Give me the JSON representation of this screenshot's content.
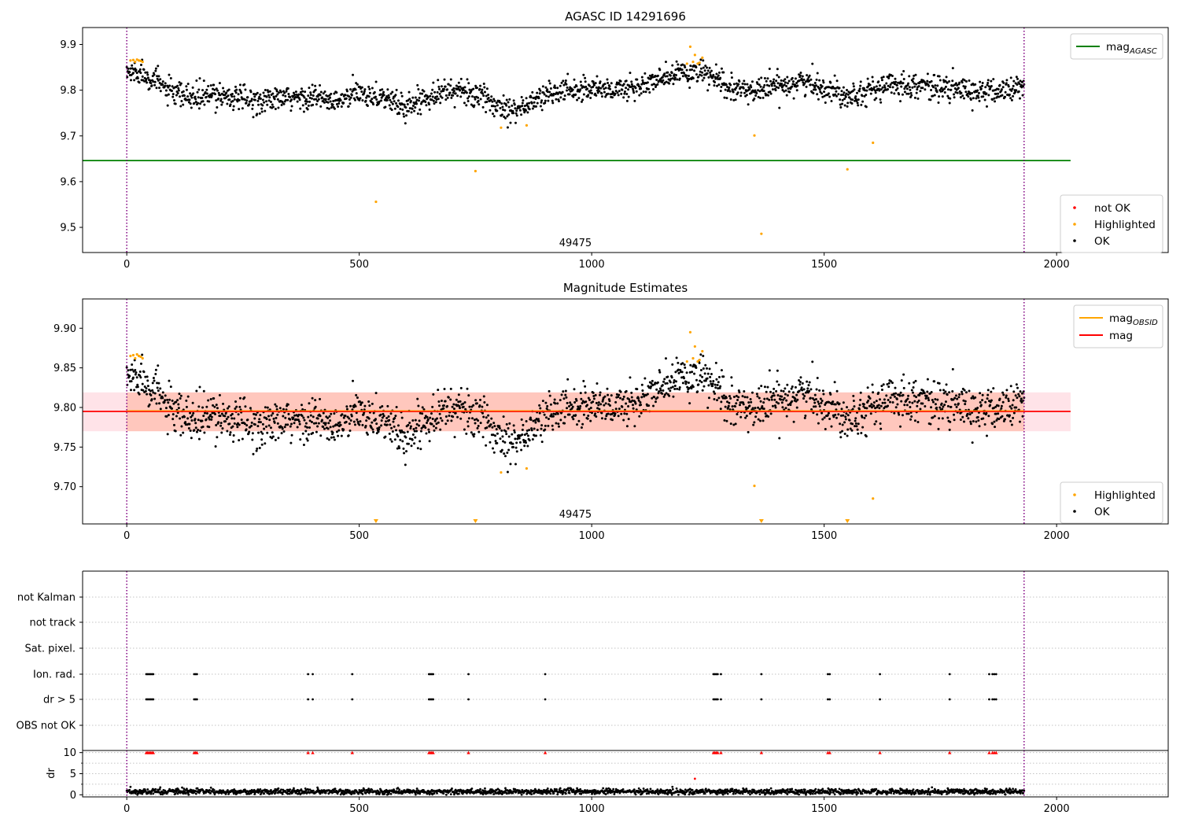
{
  "colors": {
    "ok": "#000000",
    "highlighted": "#ffa500",
    "not_ok": "#ff0000",
    "mag_agasc": "#008000",
    "mag_obsid": "#ffa500",
    "mag_mean": "#ff0000",
    "band": "#ff7f50",
    "band_light": "#ffc0cb",
    "obs_boundary": "#800080"
  },
  "chart_data": [
    {
      "type": "scatter",
      "title": "AGASC ID 14291696",
      "xlabel": "",
      "ylabel": "",
      "xlim": [
        -95,
        2240
      ],
      "ylim": [
        9.445,
        9.937
      ],
      "xticks": [
        0,
        500,
        1000,
        1500,
        2000
      ],
      "yticks": [
        9.5,
        9.6,
        9.7,
        9.8,
        9.9
      ],
      "ytick_decimals": 1,
      "grid": false,
      "obs_label": {
        "text": "49475",
        "x": 965
      },
      "obs_boundaries": [
        0,
        1930
      ],
      "reference_line": {
        "name": "mag_AGASC",
        "y": 9.646,
        "x_range": [
          -95,
          2030
        ]
      },
      "legend_lines": [
        {
          "name": "mag",
          "subscript": "AGASC",
          "color_key": "mag_agasc",
          "location": "top-right"
        }
      ],
      "legend_points": [
        {
          "name": "not OK",
          "color_key": "not_ok",
          "location": "lower-right"
        },
        {
          "name": "Highlighted",
          "color_key": "highlighted",
          "location": "lower-right"
        },
        {
          "name": "OK",
          "color_key": "ok",
          "location": "lower-right"
        }
      ],
      "series": [
        {
          "name": "OK",
          "style": "noisy_trend",
          "x_range": [
            0,
            1930
          ],
          "count": 1930,
          "noise": 0.0135,
          "trend": [
            [
              0,
              9.838
            ],
            [
              30,
              9.84
            ],
            [
              60,
              9.823
            ],
            [
              100,
              9.79
            ],
            [
              150,
              9.783
            ],
            [
              200,
              9.792
            ],
            [
              260,
              9.777
            ],
            [
              300,
              9.779
            ],
            [
              350,
              9.781
            ],
            [
              400,
              9.786
            ],
            [
              450,
              9.772
            ],
            [
              500,
              9.795
            ],
            [
              550,
              9.785
            ],
            [
              600,
              9.762
            ],
            [
              650,
              9.79
            ],
            [
              700,
              9.8
            ],
            [
              750,
              9.79
            ],
            [
              800,
              9.765
            ],
            [
              850,
              9.76
            ],
            [
              900,
              9.79
            ],
            [
              950,
              9.8
            ],
            [
              1000,
              9.805
            ],
            [
              1050,
              9.8
            ],
            [
              1100,
              9.808
            ],
            [
              1150,
              9.823
            ],
            [
              1200,
              9.84
            ],
            [
              1250,
              9.835
            ],
            [
              1300,
              9.8
            ],
            [
              1350,
              9.8
            ],
            [
              1400,
              9.81
            ],
            [
              1450,
              9.82
            ],
            [
              1500,
              9.805
            ],
            [
              1550,
              9.79
            ],
            [
              1600,
              9.8
            ],
            [
              1650,
              9.812
            ],
            [
              1700,
              9.812
            ],
            [
              1750,
              9.805
            ],
            [
              1800,
              9.8
            ],
            [
              1850,
              9.795
            ],
            [
              1900,
              9.8
            ],
            [
              1930,
              9.81
            ]
          ]
        },
        {
          "name": "Highlighted",
          "style": "points",
          "x": [
            8,
            14,
            18,
            22,
            26,
            30,
            34,
            536,
            750,
            805,
            860,
            1205,
            1212,
            1218,
            1222,
            1228,
            1232,
            1238,
            1350,
            1365,
            1550,
            1605
          ],
          "y": [
            9.865,
            9.866,
            9.862,
            9.867,
            9.865,
            9.864,
            9.862,
            9.556,
            9.623,
            9.718,
            9.723,
            9.858,
            9.895,
            9.862,
            9.877,
            9.858,
            9.86,
            9.871,
            9.701,
            9.486,
            9.627,
            9.685
          ]
        },
        {
          "name": "not OK",
          "style": "points",
          "x": [],
          "y": []
        }
      ]
    },
    {
      "type": "scatter",
      "title": "Magnitude Estimates",
      "xlabel": "",
      "ylabel": "",
      "xlim": [
        -95,
        2240
      ],
      "ylim": [
        9.653,
        9.937
      ],
      "xticks": [
        0,
        500,
        1000,
        1500,
        2000
      ],
      "yticks": [
        9.7,
        9.75,
        9.8,
        9.85,
        9.9
      ],
      "ytick_decimals": 2,
      "grid": false,
      "obs_label": {
        "text": "49475",
        "x": 965
      },
      "obs_boundaries": [
        0,
        1930
      ],
      "mean_line": {
        "name": "mag",
        "y": 9.795,
        "x_range": [
          -95,
          2030
        ]
      },
      "obsid_line": {
        "name": "mag_OBSID",
        "y": 9.795,
        "x_range": [
          0,
          1930
        ]
      },
      "band": {
        "y_low": 9.77,
        "y_high": 9.819,
        "x_range": [
          0,
          1930
        ]
      },
      "band_light": {
        "y_low": 9.77,
        "y_high": 9.819,
        "x_range": [
          -95,
          2030
        ]
      },
      "legend_lines": [
        {
          "name": "mag",
          "subscript": "OBSID",
          "color_key": "mag_obsid",
          "location": "top-right"
        },
        {
          "name": "mag",
          "subscript": "",
          "color_key": "mag_mean",
          "location": "top-right"
        }
      ],
      "legend_points": [
        {
          "name": "Highlighted",
          "color_key": "highlighted",
          "location": "lower-right"
        },
        {
          "name": "OK",
          "color_key": "ok",
          "location": "lower-right"
        }
      ],
      "off_axis_markers": {
        "x": [
          536,
          750,
          1365,
          1550
        ],
        "y": 9.655
      },
      "series": [
        {
          "name": "OK",
          "style": "noisy_trend",
          "x_range": [
            0,
            1930
          ],
          "count": 1930,
          "noise": 0.0135,
          "trend": [
            [
              0,
              9.838
            ],
            [
              30,
              9.84
            ],
            [
              60,
              9.823
            ],
            [
              100,
              9.79
            ],
            [
              150,
              9.783
            ],
            [
              200,
              9.792
            ],
            [
              260,
              9.777
            ],
            [
              300,
              9.779
            ],
            [
              350,
              9.781
            ],
            [
              400,
              9.786
            ],
            [
              450,
              9.772
            ],
            [
              500,
              9.795
            ],
            [
              550,
              9.785
            ],
            [
              600,
              9.762
            ],
            [
              650,
              9.79
            ],
            [
              700,
              9.8
            ],
            [
              750,
              9.79
            ],
            [
              800,
              9.765
            ],
            [
              850,
              9.76
            ],
            [
              900,
              9.79
            ],
            [
              950,
              9.8
            ],
            [
              1000,
              9.805
            ],
            [
              1050,
              9.8
            ],
            [
              1100,
              9.808
            ],
            [
              1150,
              9.823
            ],
            [
              1200,
              9.84
            ],
            [
              1250,
              9.835
            ],
            [
              1300,
              9.8
            ],
            [
              1350,
              9.8
            ],
            [
              1400,
              9.81
            ],
            [
              1450,
              9.82
            ],
            [
              1500,
              9.805
            ],
            [
              1550,
              9.79
            ],
            [
              1600,
              9.8
            ],
            [
              1650,
              9.812
            ],
            [
              1700,
              9.812
            ],
            [
              1750,
              9.805
            ],
            [
              1800,
              9.8
            ],
            [
              1850,
              9.795
            ],
            [
              1900,
              9.8
            ],
            [
              1930,
              9.81
            ]
          ]
        },
        {
          "name": "Highlighted",
          "style": "points",
          "x": [
            8,
            14,
            18,
            22,
            26,
            30,
            34,
            805,
            860,
            1205,
            1212,
            1218,
            1222,
            1228,
            1232,
            1238,
            1350,
            1605
          ],
          "y": [
            9.865,
            9.866,
            9.862,
            9.867,
            9.865,
            9.864,
            9.862,
            9.718,
            9.723,
            9.858,
            9.895,
            9.862,
            9.877,
            9.858,
            9.86,
            9.871,
            9.701,
            9.685
          ]
        }
      ]
    },
    {
      "type": "scatter",
      "title": "",
      "xlabel": "",
      "ylabel": "",
      "xlim": [
        -95,
        2240
      ],
      "categories": [
        "not Kalman",
        "not track",
        "Sat. pixel.",
        "Ion. rad.",
        "dr > 5",
        "OBS not OK"
      ],
      "obs_boundaries": [
        0,
        1930
      ],
      "grid": true,
      "series": [
        {
          "name": "not Kalman",
          "x": []
        },
        {
          "name": "not track",
          "x": []
        },
        {
          "name": "Sat. pixel.",
          "x": []
        },
        {
          "name": "Ion. rad.",
          "x": [
            42,
            45,
            48,
            51,
            54,
            57,
            145,
            148,
            151,
            390,
            400,
            485,
            650,
            653,
            656,
            659,
            735,
            900,
            1262,
            1265,
            1268,
            1271,
            1278,
            1365,
            1508,
            1512,
            1620,
            1770,
            1855,
            1862,
            1866,
            1870
          ]
        },
        {
          "name": "dr > 5",
          "x": [
            42,
            45,
            48,
            51,
            54,
            57,
            145,
            148,
            151,
            390,
            400,
            485,
            650,
            653,
            656,
            659,
            735,
            900,
            1262,
            1265,
            1268,
            1271,
            1278,
            1365,
            1508,
            1512,
            1620,
            1770,
            1855,
            1862,
            1866,
            1870
          ]
        },
        {
          "name": "OBS not OK",
          "x": []
        }
      ]
    },
    {
      "type": "scatter",
      "title": "",
      "xlabel": "",
      "ylabel": "dr",
      "xlim": [
        -95,
        2240
      ],
      "ylim": [
        -0.5,
        10.5
      ],
      "xticks": [
        0,
        500,
        1000,
        1500,
        2000
      ],
      "yticks": [
        0,
        5,
        10
      ],
      "minor_yticks": [
        2.5,
        7.5
      ],
      "grid": true,
      "obs_boundaries": [
        0,
        1930
      ],
      "series": [
        {
          "name": "dr",
          "style": "noisy_trend",
          "x_range": [
            0,
            1930
          ],
          "count": 1930,
          "noise": 0.32,
          "trend": [
            [
              0,
              0.75
            ],
            [
              1930,
              0.75
            ]
          ]
        },
        {
          "name": "dr > 5",
          "style": "points",
          "color_key": "not_ok",
          "marker": "triangle",
          "x": [
            42,
            45,
            48,
            51,
            54,
            57,
            145,
            148,
            151,
            390,
            400,
            485,
            650,
            653,
            656,
            659,
            735,
            900,
            1262,
            1265,
            1268,
            1271,
            1278,
            1365,
            1508,
            1512,
            1620,
            1770,
            1855,
            1862,
            1866,
            1870
          ],
          "y": [
            10,
            10,
            10,
            10,
            10,
            10,
            10,
            10,
            10,
            10,
            10,
            10,
            10,
            10,
            10,
            10,
            10,
            10,
            10,
            10,
            10,
            10,
            10,
            10,
            10,
            10,
            10,
            10,
            10,
            10,
            10,
            10
          ]
        },
        {
          "name": "outlier",
          "style": "points",
          "color_key": "not_ok",
          "x": [
            1222
          ],
          "y": [
            3.8
          ]
        }
      ]
    }
  ]
}
